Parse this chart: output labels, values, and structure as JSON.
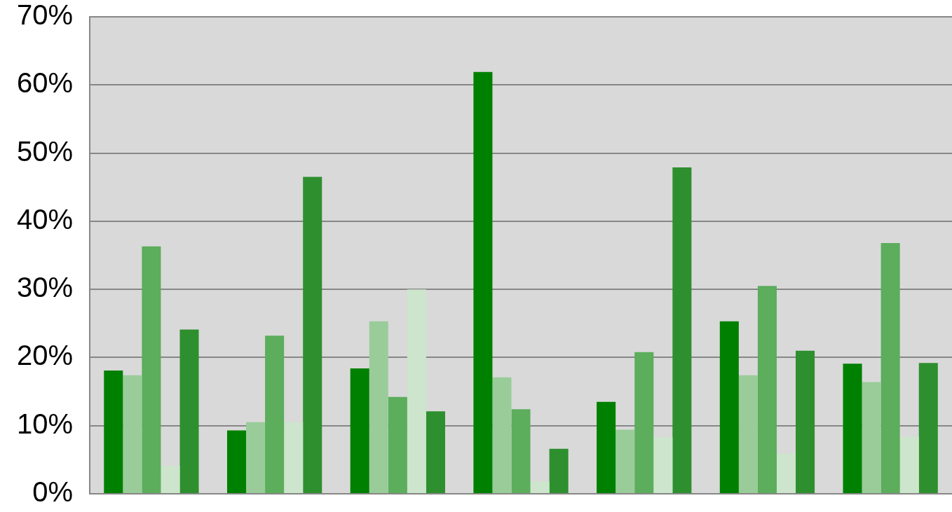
{
  "chart_data": {
    "type": "bar",
    "categories": [
      null,
      null,
      null,
      null,
      null,
      null,
      null
    ],
    "series": [
      {
        "color": "#008000",
        "values": [
          18.1,
          9.3,
          18.4,
          61.9,
          13.5,
          25.3,
          19.1
        ]
      },
      {
        "color": "#99cc99",
        "values": [
          17.4,
          10.5,
          25.3,
          17.1,
          9.4,
          17.4,
          16.4
        ]
      },
      {
        "color": "#5cad5c",
        "values": [
          36.3,
          23.2,
          14.2,
          12.4,
          20.8,
          30.5,
          36.8
        ]
      },
      {
        "color": "#cce5cc",
        "values": [
          4.1,
          10.5,
          30.0,
          1.8,
          8.3,
          5.9,
          8.4
        ]
      },
      {
        "color": "#2e8f2e",
        "values": [
          24.1,
          46.5,
          12.1,
          6.6,
          47.9,
          21.0,
          19.2
        ]
      }
    ],
    "ylim": [
      0,
      70
    ],
    "yticks": [
      {
        "value": 0,
        "label": "0%"
      },
      {
        "value": 10,
        "label": "10%"
      },
      {
        "value": 20,
        "label": "20%"
      },
      {
        "value": 30,
        "label": "30%"
      },
      {
        "value": 40,
        "label": "40%"
      },
      {
        "value": 50,
        "label": "50%"
      },
      {
        "value": 60,
        "label": "60%"
      },
      {
        "value": 70,
        "label": "70%"
      }
    ],
    "grid": "y",
    "tick_labels": "y"
  }
}
